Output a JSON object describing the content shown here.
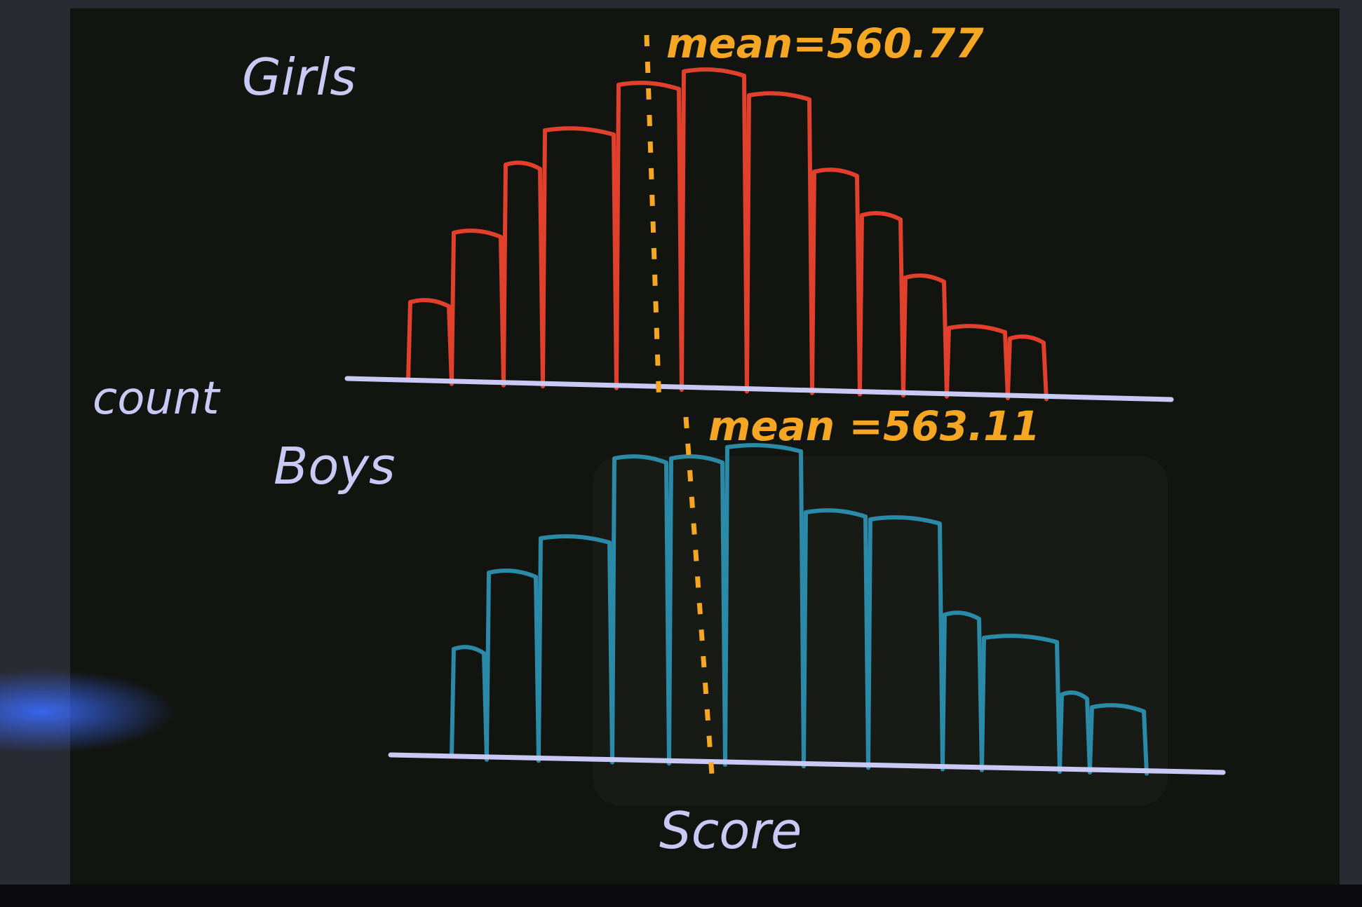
{
  "girls": {
    "label": "Girls",
    "mean_label": "mean=560.77"
  },
  "boys": {
    "label": "Boys",
    "mean_label": "mean =563.11"
  },
  "y_axis_label": "count",
  "x_axis_label": "Score"
}
